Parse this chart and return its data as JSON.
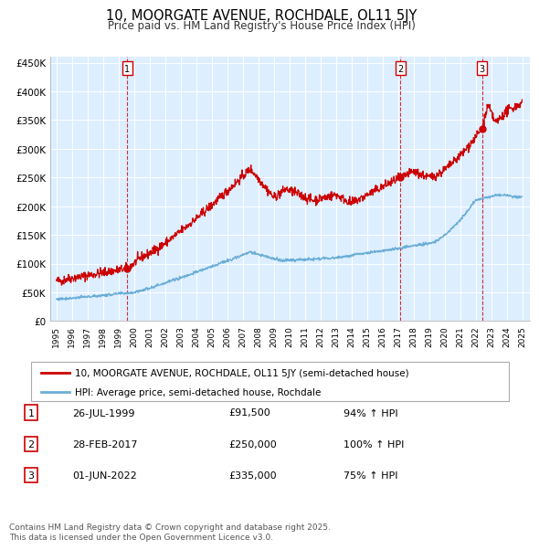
{
  "title": "10, MOORGATE AVENUE, ROCHDALE, OL11 5JY",
  "subtitle": "Price paid vs. HM Land Registry's House Price Index (HPI)",
  "legend_line1": "10, MOORGATE AVENUE, ROCHDALE, OL11 5JY (semi-detached house)",
  "legend_line2": "HPI: Average price, semi-detached house, Rochdale",
  "table": [
    {
      "num": 1,
      "date": "26-JUL-1999",
      "price": "£91,500",
      "hpi": "94% ↑ HPI"
    },
    {
      "num": 2,
      "date": "28-FEB-2017",
      "price": "£250,000",
      "hpi": "100% ↑ HPI"
    },
    {
      "num": 3,
      "date": "01-JUN-2022",
      "price": "£335,000",
      "hpi": "75% ↑ HPI"
    }
  ],
  "footnote": "Contains HM Land Registry data © Crown copyright and database right 2025.\nThis data is licensed under the Open Government Licence v3.0.",
  "red_color": "#cc0000",
  "blue_color": "#6baed6",
  "chart_bg": "#ddeeff",
  "ylim": [
    0,
    450000
  ],
  "yticks": [
    0,
    50000,
    100000,
    150000,
    200000,
    250000,
    300000,
    350000,
    400000,
    450000
  ],
  "purchase_years": [
    1999.57,
    2017.16,
    2022.42
  ],
  "marker_prices": [
    91500,
    250000,
    335000
  ],
  "xstart": 1995,
  "xend": 2025
}
